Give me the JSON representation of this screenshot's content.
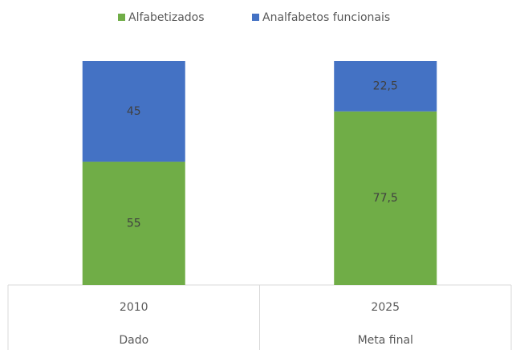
{
  "chart_data": {
    "type": "stacked_bar",
    "categories": [
      "2010",
      "2025"
    ],
    "subcategories": [
      "Dado",
      "Meta final"
    ],
    "series": [
      {
        "name": "Alfabetizados",
        "color": "#70ad47",
        "values": [
          55,
          77.5
        ],
        "value_labels": [
          "55",
          "77,5"
        ]
      },
      {
        "name": "Analfabetos funcionais",
        "color": "#4472c4",
        "values": [
          45,
          22.5
        ],
        "value_labels": [
          "45",
          "22,5"
        ]
      }
    ],
    "ylim": [
      0,
      100
    ],
    "legend": "top"
  }
}
